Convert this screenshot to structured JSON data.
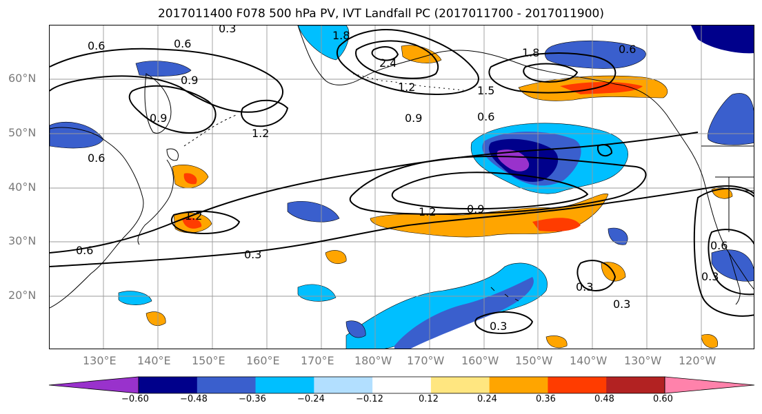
{
  "title": "2017011400 F078 500 hPa PV, IVT Landfall PC (2017011700 - 2017011900)",
  "lat_labels": [
    "60°N",
    "50°N",
    "40°N",
    "30°N",
    "20°N"
  ],
  "lon_labels": [
    "130°E",
    "140°E",
    "150°E",
    "160°E",
    "170°E",
    "180°W",
    "170°W",
    "160°W",
    "150°W",
    "140°W",
    "130°W",
    "120°W"
  ],
  "contour_labels": [
    "0.3",
    "0.6",
    "0.6",
    "0.9",
    "1.8",
    "2.4",
    "1.2",
    "1.8",
    "1.5",
    "0.6",
    "0.9",
    "0.6",
    "0.9",
    "1.2",
    "0.6",
    "1.2",
    "0.9",
    "1.2",
    "0.3",
    "0.6",
    "0.6",
    "0.3",
    "0.3",
    "0.3",
    "0.3"
  ],
  "colorbar": {
    "ticks": [
      "−0.60",
      "−0.48",
      "−0.36",
      "−0.24",
      "−0.12",
      "0.12",
      "0.24",
      "0.36",
      "0.48",
      "0.60"
    ],
    "colors": [
      "#9932cc",
      "#00008b",
      "#3a5fcd",
      "#00bfff",
      "#b2dfff",
      "#ffffff",
      "#ffe680",
      "#ffa500",
      "#ff3c00",
      "#b22222",
      "#ff82ab"
    ]
  },
  "colors": {
    "grid": "#9a9a9a",
    "coast": "#000000",
    "contour": "#000000",
    "axis_text": "#7a7a7a"
  }
}
